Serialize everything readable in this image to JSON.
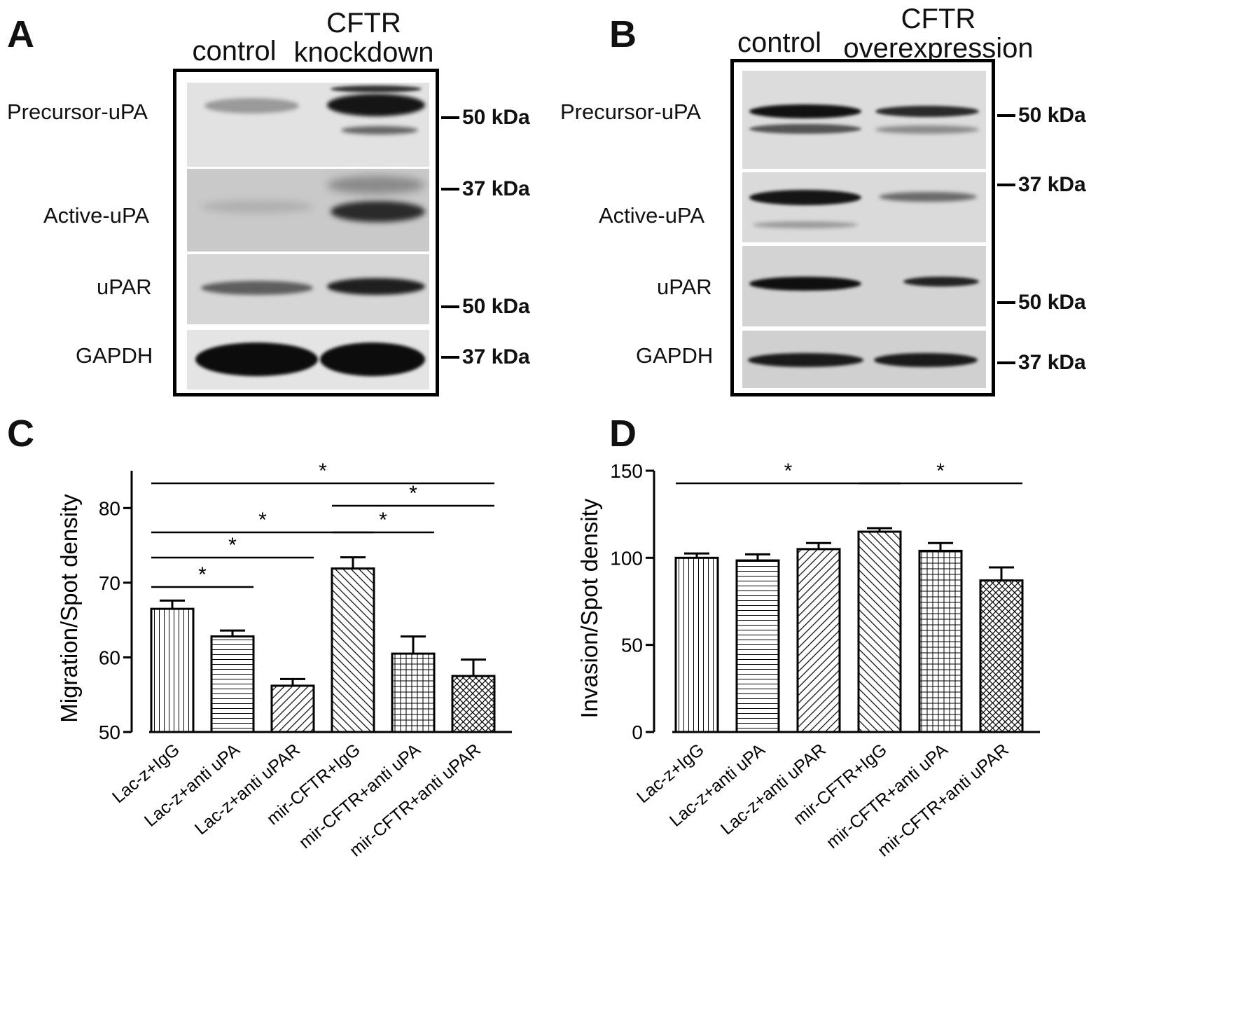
{
  "panel_a": {
    "letter": "A",
    "columns": [
      {
        "lines": [
          "control"
        ]
      },
      {
        "lines": [
          "CFTR",
          "knockdown"
        ]
      }
    ],
    "rows": [
      "Precursor-uPA",
      "Active-uPA",
      "uPAR",
      "GAPDH"
    ],
    "markers": [
      "50 kDa",
      "37 kDa",
      "50 kDa",
      "37 kDa"
    ]
  },
  "panel_b": {
    "letter": "B",
    "columns": [
      {
        "lines": [
          "control"
        ]
      },
      {
        "lines": [
          "CFTR",
          "overexpression"
        ]
      }
    ],
    "rows": [
      "Precursor-uPA",
      "Active-uPA",
      "uPAR",
      "GAPDH"
    ],
    "markers": [
      "50 kDa",
      "37 kDa",
      "50 kDa",
      "37 kDa"
    ]
  },
  "panel_c": {
    "letter": "C"
  },
  "panel_d": {
    "letter": "D"
  },
  "chart_data": [
    {
      "type": "bar",
      "panel": "C",
      "categories": [
        "Lac-z+IgG",
        "Lac-z+anti uPA",
        "Lac-z+anti uPAR",
        "mir-CFTR+IgG",
        "mir-CFTR+anti uPA",
        "mir-CFTR+anti uPAR"
      ],
      "values": [
        66.5,
        62.8,
        56.2,
        71.9,
        60.5,
        57.5
      ],
      "errors": [
        1.1,
        0.8,
        0.9,
        1.5,
        2.3,
        2.2
      ],
      "patterns": [
        "vertical",
        "horizontal",
        "diag-back",
        "diag-fwd",
        "grid",
        "crosshatch"
      ],
      "xlabel": "",
      "ylabel": "Migration/Spot density",
      "ylim": [
        50,
        85
      ],
      "yticks": [
        50,
        60,
        70,
        80
      ],
      "significance": [
        {
          "from": 0,
          "to": 1,
          "label": "*"
        },
        {
          "from": 0,
          "to": 2,
          "label": "*"
        },
        {
          "from": 0,
          "to": 3,
          "label": "*"
        },
        {
          "from": 3,
          "to": 4,
          "label": "*"
        },
        {
          "from": 3,
          "to": 5,
          "label": "*"
        },
        {
          "from": 0,
          "to": 5,
          "label": "*"
        }
      ]
    },
    {
      "type": "bar",
      "panel": "D",
      "categories": [
        "Lac-z+IgG",
        "Lac-z+anti uPA",
        "Lac-z+anti uPAR",
        "mir-CFTR+IgG",
        "mir-CFTR+anti uPA",
        "mir-CFTR+anti uPAR"
      ],
      "values": [
        100,
        98.5,
        105,
        115,
        104,
        87
      ],
      "errors": [
        2.5,
        3.5,
        3.5,
        2,
        4.5,
        7.5
      ],
      "patterns": [
        "vertical",
        "horizontal",
        "diag-back",
        "diag-fwd",
        "grid",
        "crosshatch"
      ],
      "xlabel": "",
      "ylabel": "Invasion/Spot density",
      "ylim": [
        0,
        150
      ],
      "yticks": [
        0,
        50,
        100,
        150
      ],
      "significance": [
        {
          "from": 0,
          "to": 3,
          "label": "*"
        },
        {
          "from": 3,
          "to": 5,
          "label": "*"
        }
      ]
    }
  ]
}
